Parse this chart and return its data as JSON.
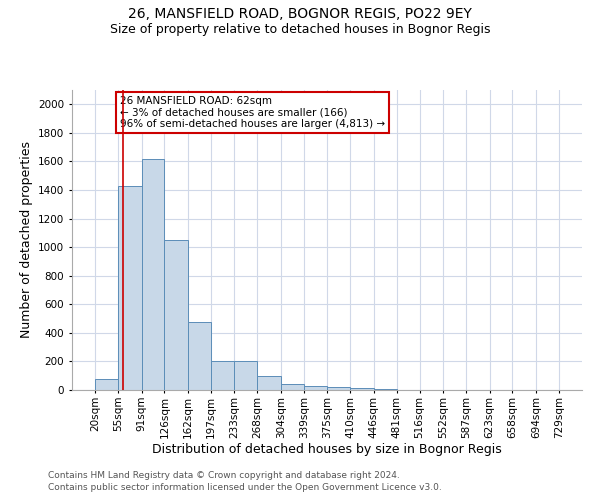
{
  "title": "26, MANSFIELD ROAD, BOGNOR REGIS, PO22 9EY",
  "subtitle": "Size of property relative to detached houses in Bognor Regis",
  "xlabel": "Distribution of detached houses by size in Bognor Regis",
  "ylabel": "Number of detached properties",
  "footer_line1": "Contains HM Land Registry data © Crown copyright and database right 2024.",
  "footer_line2": "Contains public sector information licensed under the Open Government Licence v3.0.",
  "annotation_title": "26 MANSFIELD ROAD: 62sqm",
  "annotation_line2": "← 3% of detached houses are smaller (166)",
  "annotation_line3": "96% of semi-detached houses are larger (4,813) →",
  "subject_value": 62,
  "bar_edges": [
    20,
    55,
    91,
    126,
    162,
    197,
    233,
    268,
    304,
    339,
    375,
    410,
    446,
    481,
    516,
    552,
    587,
    623,
    658,
    694,
    729
  ],
  "bar_heights": [
    75,
    1430,
    1620,
    1050,
    475,
    200,
    200,
    95,
    40,
    30,
    20,
    15,
    8,
    3,
    2,
    2,
    1,
    1,
    1,
    1
  ],
  "bar_color": "#c8d8e8",
  "bar_edge_color": "#5b8db8",
  "vline_color": "#cc0000",
  "annotation_box_edge": "#cc0000",
  "grid_color": "#d0d8e8",
  "background_color": "#ffffff",
  "ylim": [
    0,
    2100
  ],
  "yticks": [
    0,
    200,
    400,
    600,
    800,
    1000,
    1200,
    1400,
    1600,
    1800,
    2000
  ],
  "title_fontsize": 10,
  "subtitle_fontsize": 9,
  "xlabel_fontsize": 9,
  "ylabel_fontsize": 9,
  "tick_fontsize": 7.5,
  "annotation_fontsize": 7.5,
  "footer_fontsize": 6.5
}
